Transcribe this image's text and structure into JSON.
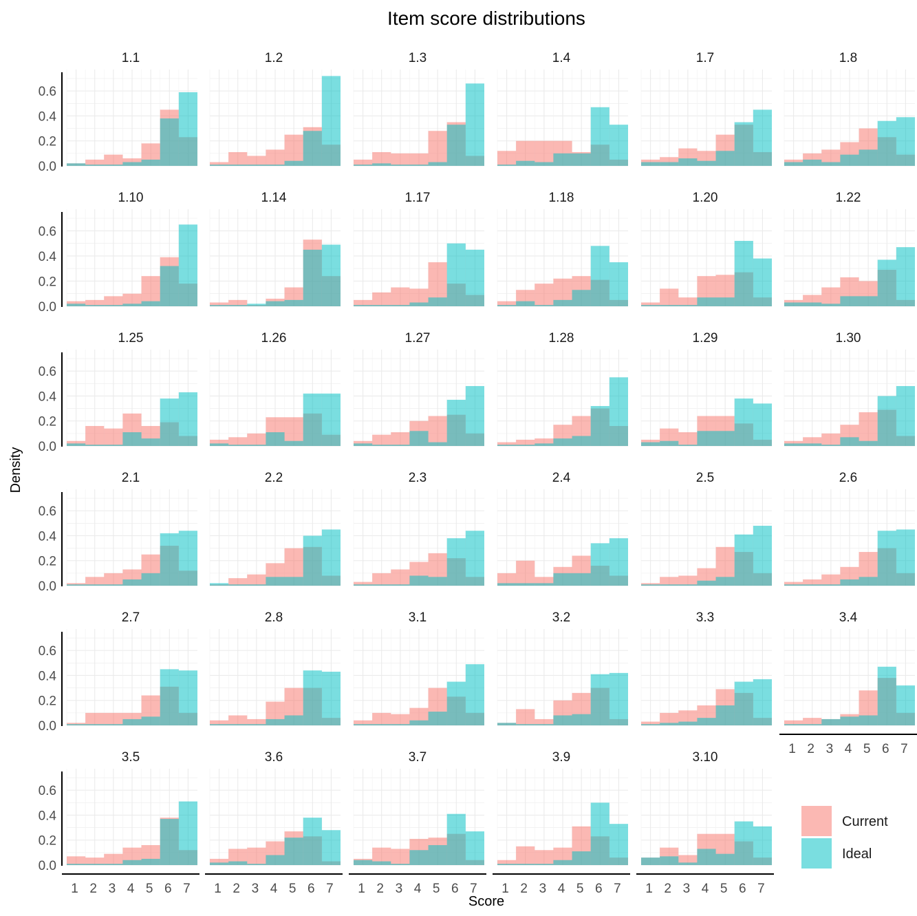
{
  "chart_data": {
    "type": "bar",
    "title": "Item score distributions",
    "xlabel": "Score",
    "ylabel": "Density",
    "x_ticks": [
      "1",
      "2",
      "3",
      "4",
      "5",
      "6",
      "7"
    ],
    "y_ticks": [
      "0.0",
      "0.2",
      "0.4",
      "0.6"
    ],
    "ylim": [
      0,
      0.75
    ],
    "grid": true,
    "legend_position": "right",
    "legend": [
      {
        "name": "Current",
        "color": "#F8766D"
      },
      {
        "name": "Ideal",
        "color": "#00BFC4"
      }
    ],
    "panels": [
      {
        "label": "1.1",
        "current": [
          0.02,
          0.05,
          0.09,
          0.06,
          0.18,
          0.45,
          0.23
        ],
        "ideal": [
          0.02,
          0.01,
          0.01,
          0.03,
          0.05,
          0.38,
          0.59
        ]
      },
      {
        "label": "1.2",
        "current": [
          0.03,
          0.11,
          0.08,
          0.13,
          0.25,
          0.31,
          0.17
        ],
        "ideal": [
          0.01,
          0.01,
          0.01,
          0.01,
          0.04,
          0.28,
          0.72
        ]
      },
      {
        "label": "1.3",
        "current": [
          0.05,
          0.11,
          0.1,
          0.1,
          0.28,
          0.35,
          0.08
        ],
        "ideal": [
          0.01,
          0.02,
          0.01,
          0.01,
          0.03,
          0.33,
          0.66
        ]
      },
      {
        "label": "1.4",
        "current": [
          0.12,
          0.2,
          0.2,
          0.2,
          0.11,
          0.17,
          0.05
        ],
        "ideal": [
          0.01,
          0.04,
          0.03,
          0.1,
          0.1,
          0.47,
          0.33
        ]
      },
      {
        "label": "1.7",
        "current": [
          0.05,
          0.07,
          0.14,
          0.12,
          0.25,
          0.33,
          0.11
        ],
        "ideal": [
          0.03,
          0.03,
          0.06,
          0.04,
          0.12,
          0.35,
          0.45
        ]
      },
      {
        "label": "1.8",
        "current": [
          0.05,
          0.1,
          0.13,
          0.19,
          0.3,
          0.23,
          0.09
        ],
        "ideal": [
          0.03,
          0.05,
          0.03,
          0.09,
          0.13,
          0.36,
          0.39
        ]
      },
      {
        "label": "1.10",
        "current": [
          0.04,
          0.05,
          0.08,
          0.1,
          0.24,
          0.39,
          0.18
        ],
        "ideal": [
          0.02,
          0.01,
          0.01,
          0.02,
          0.04,
          0.32,
          0.65
        ]
      },
      {
        "label": "1.14",
        "current": [
          0.03,
          0.05,
          0.01,
          0.06,
          0.15,
          0.53,
          0.24
        ],
        "ideal": [
          0.01,
          0.01,
          0.02,
          0.04,
          0.05,
          0.45,
          0.49
        ]
      },
      {
        "label": "1.17",
        "current": [
          0.05,
          0.11,
          0.15,
          0.14,
          0.35,
          0.18,
          0.09
        ],
        "ideal": [
          0.01,
          0.01,
          0.01,
          0.03,
          0.07,
          0.5,
          0.45
        ]
      },
      {
        "label": "1.18",
        "current": [
          0.04,
          0.13,
          0.18,
          0.22,
          0.24,
          0.21,
          0.05
        ],
        "ideal": [
          0.01,
          0.04,
          0.01,
          0.05,
          0.13,
          0.48,
          0.35
        ]
      },
      {
        "label": "1.20",
        "current": [
          0.03,
          0.14,
          0.07,
          0.24,
          0.25,
          0.27,
          0.07
        ],
        "ideal": [
          0.01,
          0.01,
          0.01,
          0.07,
          0.07,
          0.52,
          0.38
        ]
      },
      {
        "label": "1.22",
        "current": [
          0.05,
          0.09,
          0.15,
          0.23,
          0.2,
          0.29,
          0.05
        ],
        "ideal": [
          0.03,
          0.03,
          0.02,
          0.08,
          0.08,
          0.37,
          0.47
        ]
      },
      {
        "label": "1.25",
        "current": [
          0.04,
          0.16,
          0.14,
          0.26,
          0.16,
          0.19,
          0.08
        ],
        "ideal": [
          0.02,
          0.01,
          0.01,
          0.11,
          0.06,
          0.38,
          0.43
        ]
      },
      {
        "label": "1.26",
        "current": [
          0.05,
          0.07,
          0.1,
          0.23,
          0.23,
          0.26,
          0.09
        ],
        "ideal": [
          0.02,
          0.01,
          0.01,
          0.11,
          0.04,
          0.42,
          0.42
        ]
      },
      {
        "label": "1.27",
        "current": [
          0.04,
          0.09,
          0.11,
          0.2,
          0.24,
          0.25,
          0.1
        ],
        "ideal": [
          0.02,
          0.01,
          0.01,
          0.12,
          0.03,
          0.37,
          0.48
        ]
      },
      {
        "label": "1.28",
        "current": [
          0.03,
          0.05,
          0.06,
          0.17,
          0.24,
          0.3,
          0.16
        ],
        "ideal": [
          0.01,
          0.01,
          0.02,
          0.06,
          0.08,
          0.32,
          0.55
        ]
      },
      {
        "label": "1.29",
        "current": [
          0.05,
          0.14,
          0.11,
          0.24,
          0.24,
          0.18,
          0.05
        ],
        "ideal": [
          0.03,
          0.04,
          0.01,
          0.12,
          0.12,
          0.38,
          0.34
        ]
      },
      {
        "label": "1.30",
        "current": [
          0.04,
          0.07,
          0.1,
          0.17,
          0.27,
          0.29,
          0.08
        ],
        "ideal": [
          0.02,
          0.02,
          0.01,
          0.07,
          0.04,
          0.4,
          0.48
        ]
      },
      {
        "label": "2.1",
        "current": [
          0.02,
          0.07,
          0.1,
          0.13,
          0.25,
          0.32,
          0.12
        ],
        "ideal": [
          0.01,
          0.01,
          0.01,
          0.05,
          0.1,
          0.42,
          0.44
        ]
      },
      {
        "label": "2.2",
        "current": [
          0.01,
          0.06,
          0.09,
          0.18,
          0.3,
          0.31,
          0.08
        ],
        "ideal": [
          0.02,
          0.01,
          0.01,
          0.07,
          0.07,
          0.4,
          0.45
        ]
      },
      {
        "label": "2.3",
        "current": [
          0.03,
          0.1,
          0.13,
          0.19,
          0.26,
          0.22,
          0.07
        ],
        "ideal": [
          0.01,
          0.01,
          0.01,
          0.08,
          0.07,
          0.38,
          0.44
        ]
      },
      {
        "label": "2.4",
        "current": [
          0.1,
          0.2,
          0.07,
          0.15,
          0.24,
          0.16,
          0.08
        ],
        "ideal": [
          0.02,
          0.02,
          0.02,
          0.1,
          0.1,
          0.34,
          0.38
        ]
      },
      {
        "label": "2.5",
        "current": [
          0.02,
          0.07,
          0.08,
          0.14,
          0.31,
          0.27,
          0.1
        ],
        "ideal": [
          0.01,
          0.01,
          0.01,
          0.04,
          0.07,
          0.41,
          0.48
        ]
      },
      {
        "label": "2.6",
        "current": [
          0.03,
          0.05,
          0.09,
          0.15,
          0.27,
          0.3,
          0.1
        ],
        "ideal": [
          0.01,
          0.01,
          0.01,
          0.05,
          0.07,
          0.44,
          0.45
        ]
      },
      {
        "label": "2.7",
        "current": [
          0.02,
          0.1,
          0.1,
          0.1,
          0.24,
          0.31,
          0.1
        ],
        "ideal": [
          0.01,
          0.01,
          0.01,
          0.05,
          0.07,
          0.45,
          0.44
        ]
      },
      {
        "label": "2.8",
        "current": [
          0.04,
          0.08,
          0.05,
          0.19,
          0.3,
          0.3,
          0.06
        ],
        "ideal": [
          0.01,
          0.01,
          0.01,
          0.05,
          0.08,
          0.44,
          0.43
        ]
      },
      {
        "label": "3.1",
        "current": [
          0.04,
          0.1,
          0.09,
          0.14,
          0.3,
          0.23,
          0.1
        ],
        "ideal": [
          0.01,
          0.01,
          0.01,
          0.04,
          0.11,
          0.35,
          0.49
        ]
      },
      {
        "label": "3.2",
        "current": [
          0.02,
          0.13,
          0.05,
          0.2,
          0.26,
          0.3,
          0.05
        ],
        "ideal": [
          0.02,
          0.01,
          0.01,
          0.08,
          0.09,
          0.41,
          0.42
        ]
      },
      {
        "label": "3.3",
        "current": [
          0.03,
          0.1,
          0.12,
          0.16,
          0.29,
          0.26,
          0.06
        ],
        "ideal": [
          0.01,
          0.02,
          0.03,
          0.06,
          0.16,
          0.35,
          0.37
        ]
      },
      {
        "label": "3.4",
        "current": [
          0.04,
          0.06,
          0.05,
          0.09,
          0.28,
          0.38,
          0.1
        ],
        "ideal": [
          0.01,
          0.01,
          0.05,
          0.07,
          0.08,
          0.47,
          0.32
        ]
      },
      {
        "label": "3.5",
        "current": [
          0.07,
          0.06,
          0.09,
          0.14,
          0.16,
          0.38,
          0.12
        ],
        "ideal": [
          0.01,
          0.01,
          0.01,
          0.04,
          0.05,
          0.37,
          0.51
        ]
      },
      {
        "label": "3.6",
        "current": [
          0.05,
          0.13,
          0.14,
          0.19,
          0.27,
          0.23,
          0.03
        ],
        "ideal": [
          0.02,
          0.03,
          0.01,
          0.08,
          0.22,
          0.38,
          0.28
        ]
      },
      {
        "label": "3.7",
        "current": [
          0.05,
          0.14,
          0.13,
          0.21,
          0.22,
          0.25,
          0.04
        ],
        "ideal": [
          0.04,
          0.03,
          0.01,
          0.12,
          0.16,
          0.41,
          0.27
        ]
      },
      {
        "label": "3.9",
        "current": [
          0.04,
          0.15,
          0.12,
          0.14,
          0.31,
          0.23,
          0.06
        ],
        "ideal": [
          0.01,
          0.01,
          0.01,
          0.04,
          0.11,
          0.5,
          0.33
        ]
      },
      {
        "label": "3.10",
        "current": [
          0.06,
          0.14,
          0.08,
          0.25,
          0.25,
          0.19,
          0.06
        ],
        "ideal": [
          0.06,
          0.07,
          0.02,
          0.13,
          0.09,
          0.35,
          0.31
        ]
      }
    ]
  }
}
